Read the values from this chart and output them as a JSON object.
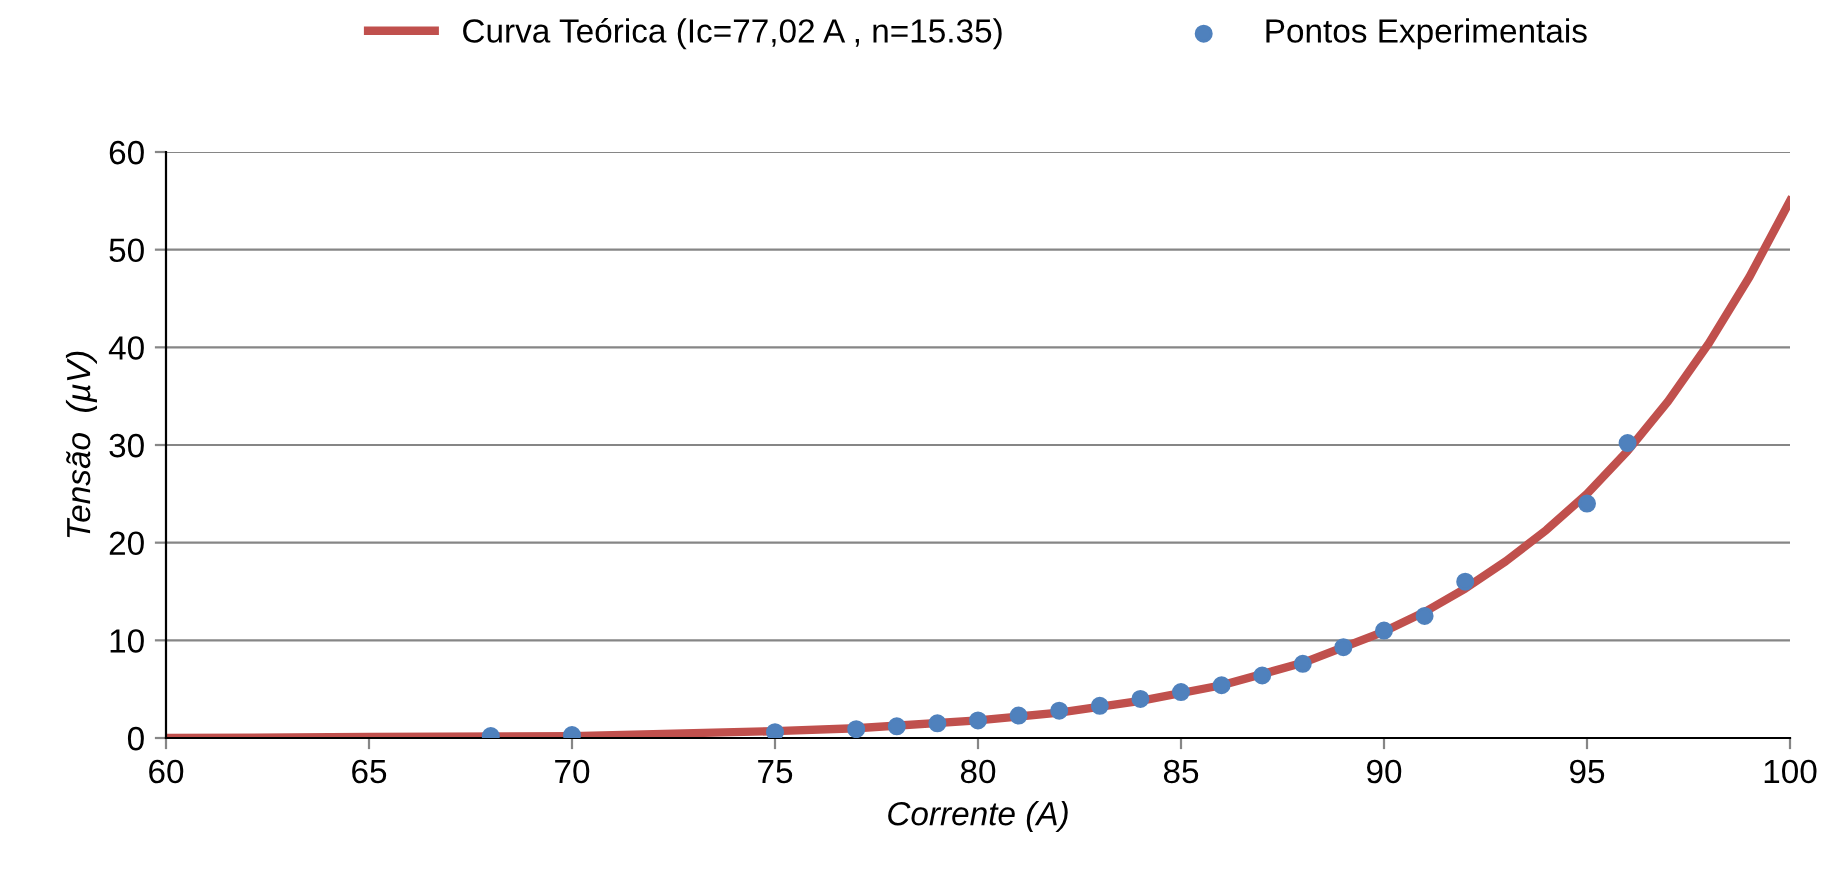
{
  "chart_data": {
    "type": "line",
    "xlabel": "Corrente (A)",
    "ylabel": "Tensão  (µV)",
    "xlim": [
      60,
      100
    ],
    "xticks": [
      60,
      65,
      70,
      75,
      80,
      85,
      90,
      95,
      100
    ],
    "ylim": [
      0,
      60
    ],
    "yticks": [
      0,
      10,
      20,
      30,
      40,
      50,
      60
    ],
    "grid": "y",
    "legend": "top",
    "series": [
      {
        "name": "Curva Teórica (Ic=77,02 A , n=15.35)",
        "color": "#c0504d",
        "marker": "none",
        "x": [
          60,
          65,
          70,
          72,
          75,
          77,
          80,
          82,
          84,
          86,
          88,
          90,
          91,
          92,
          93,
          94,
          95,
          96,
          97,
          98,
          99,
          100
        ],
        "values": [
          0.0,
          0.1,
          0.2,
          0.4,
          0.7,
          1.0,
          1.8,
          2.6,
          3.8,
          5.4,
          7.7,
          10.9,
          12.9,
          15.3,
          18.1,
          21.3,
          25.0,
          29.4,
          34.5,
          40.4,
          47.2,
          55.0
        ]
      },
      {
        "name": "Pontos Experimentais",
        "type": "scatter",
        "color": "#4f81bd",
        "marker": "circle",
        "x": [
          68,
          70,
          75,
          77,
          78,
          79,
          80,
          81,
          82,
          83,
          84,
          85,
          86,
          87,
          88,
          89,
          90,
          91,
          92,
          95,
          96
        ],
        "values": [
          0.2,
          0.3,
          0.6,
          0.9,
          1.2,
          1.5,
          1.8,
          2.3,
          2.8,
          3.3,
          4.0,
          4.7,
          5.4,
          6.4,
          7.6,
          9.3,
          11.0,
          12.5,
          16.0,
          24.0,
          30.2
        ]
      }
    ]
  }
}
